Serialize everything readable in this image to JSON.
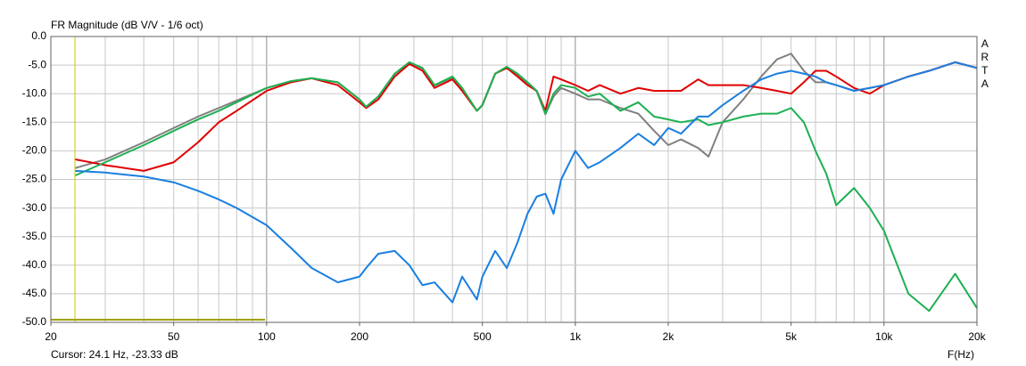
{
  "chart_data": {
    "type": "line",
    "title": "FR Magnitude (dB V/V - 1/6 oct)",
    "brand": "ARTA",
    "cursor": "Cursor: 24.1 Hz, -23.33 dB",
    "x_label": "F(Hz)",
    "log_x": true,
    "grid": true,
    "xlim": [
      20,
      20000
    ],
    "ylim": [
      -50,
      0
    ],
    "xticks": [
      20,
      50,
      100,
      200,
      500,
      {
        "value": 1000,
        "label": "1k"
      },
      {
        "value": 2000,
        "label": "2k"
      },
      {
        "value": 5000,
        "label": "5k"
      },
      {
        "value": 10000,
        "label": "10k"
      },
      {
        "value": 20000,
        "label": "20k"
      }
    ],
    "yticks": [
      {
        "value": 0,
        "label": "0.0"
      },
      {
        "value": -5,
        "label": "-5.0"
      },
      {
        "value": -10,
        "label": "-10.0"
      },
      {
        "value": -15,
        "label": "-15.0"
      },
      {
        "value": -20,
        "label": "-20.0"
      },
      {
        "value": -25,
        "label": "-25.0"
      },
      {
        "value": -30,
        "label": "-30.0"
      },
      {
        "value": -35,
        "label": "-35.0"
      },
      {
        "value": -40,
        "label": "-40.0"
      },
      {
        "value": -45,
        "label": "-45.0"
      },
      {
        "value": -50,
        "label": "-50.0"
      }
    ],
    "x": [
      24,
      30,
      40,
      50,
      60,
      70,
      80,
      100,
      120,
      140,
      170,
      200,
      210,
      230,
      260,
      290,
      320,
      350,
      400,
      430,
      480,
      500,
      550,
      600,
      650,
      700,
      750,
      800,
      850,
      900,
      1000,
      1100,
      1200,
      1400,
      1600,
      1800,
      2000,
      2200,
      2500,
      2700,
      3000,
      3500,
      4000,
      4500,
      5000,
      5500,
      6000,
      6500,
      7000,
      8000,
      9000,
      10000,
      12000,
      14000,
      17000,
      20000
    ],
    "series": [
      {
        "color": "#808080",
        "values": [
          -23,
          -21.5,
          -18.5,
          -16,
          -14,
          -12.5,
          -11.2,
          -9,
          -7.8,
          -7.3,
          -8,
          -11,
          -12.3,
          -10.5,
          -6.5,
          -4.5,
          -5.6,
          -8.6,
          -7.2,
          -9.2,
          -13,
          -12,
          -6.5,
          -5.3,
          -6.6,
          -8.2,
          -9.6,
          -13.6,
          -10.5,
          -9,
          -10,
          -11,
          -11,
          -12.5,
          -13.5,
          -16.5,
          -19,
          -18,
          -19.5,
          -21,
          -15,
          -11,
          -7,
          -4,
          -3,
          -6,
          -8,
          -8,
          -8.5,
          -9.5,
          -9,
          -8.5,
          -7,
          -6,
          -4.5,
          -5.5
        ]
      },
      {
        "color": "#e00000",
        "values": [
          -21.5,
          -22.5,
          -23.5,
          -22,
          -18.5,
          -15,
          -13,
          -9.5,
          -8,
          -7.3,
          -8.5,
          -11.5,
          -12.5,
          -11,
          -7,
          -4.8,
          -6,
          -9,
          -7.5,
          -9.5,
          -13,
          -12,
          -6.5,
          -5.5,
          -7,
          -8.5,
          -9.5,
          -13,
          -7,
          -7.5,
          -8.5,
          -9.5,
          -8.5,
          -10,
          -9,
          -9.5,
          -9.5,
          -9.5,
          -7.5,
          -8.5,
          -8.5,
          -8.5,
          -9,
          -9.5,
          -10,
          -8,
          -6,
          -6,
          -7,
          -9,
          -10,
          -8.5,
          -7,
          -6,
          -4.5,
          -5.5
        ]
      },
      {
        "color": "#1db052",
        "values": [
          -24.3,
          -22,
          -19,
          -16.5,
          -14.5,
          -13,
          -11.5,
          -9,
          -7.8,
          -7.3,
          -8,
          -11,
          -12.3,
          -10.5,
          -6.5,
          -4.5,
          -5.5,
          -8.5,
          -7,
          -9,
          -13,
          -12,
          -6.5,
          -5.3,
          -6.5,
          -8,
          -9.5,
          -13.5,
          -10,
          -8.5,
          -9,
          -10.5,
          -10,
          -13,
          -11.5,
          -14,
          -14.5,
          -15,
          -14.5,
          -15.5,
          -15,
          -14,
          -13.5,
          -13.5,
          -12.5,
          -15,
          -20,
          -24,
          -29.5,
          -26.5,
          -30,
          -34,
          -45,
          -48,
          -41.5,
          -47.5
        ]
      },
      {
        "color": "#1a7fe0",
        "values": [
          -23.5,
          -23.8,
          -24.5,
          -25.5,
          -27,
          -28.5,
          -30,
          -33,
          -37,
          -40.5,
          -43,
          -42,
          -40.5,
          -38,
          -37.5,
          -40,
          -43.5,
          -43,
          -46.5,
          -42,
          -46,
          -42,
          -37.5,
          -40.5,
          -36,
          -31,
          -28,
          -27.5,
          -31,
          -25,
          -20,
          -23,
          -22,
          -19.5,
          -17,
          -19,
          -16,
          -17,
          -14,
          -14,
          -12,
          -9.5,
          -7.5,
          -6.5,
          -6,
          -6.5,
          -7,
          -8,
          -8.5,
          -9.5,
          -9,
          -8.5,
          -7,
          -6,
          -4.5,
          -5.5
        ]
      }
    ]
  }
}
